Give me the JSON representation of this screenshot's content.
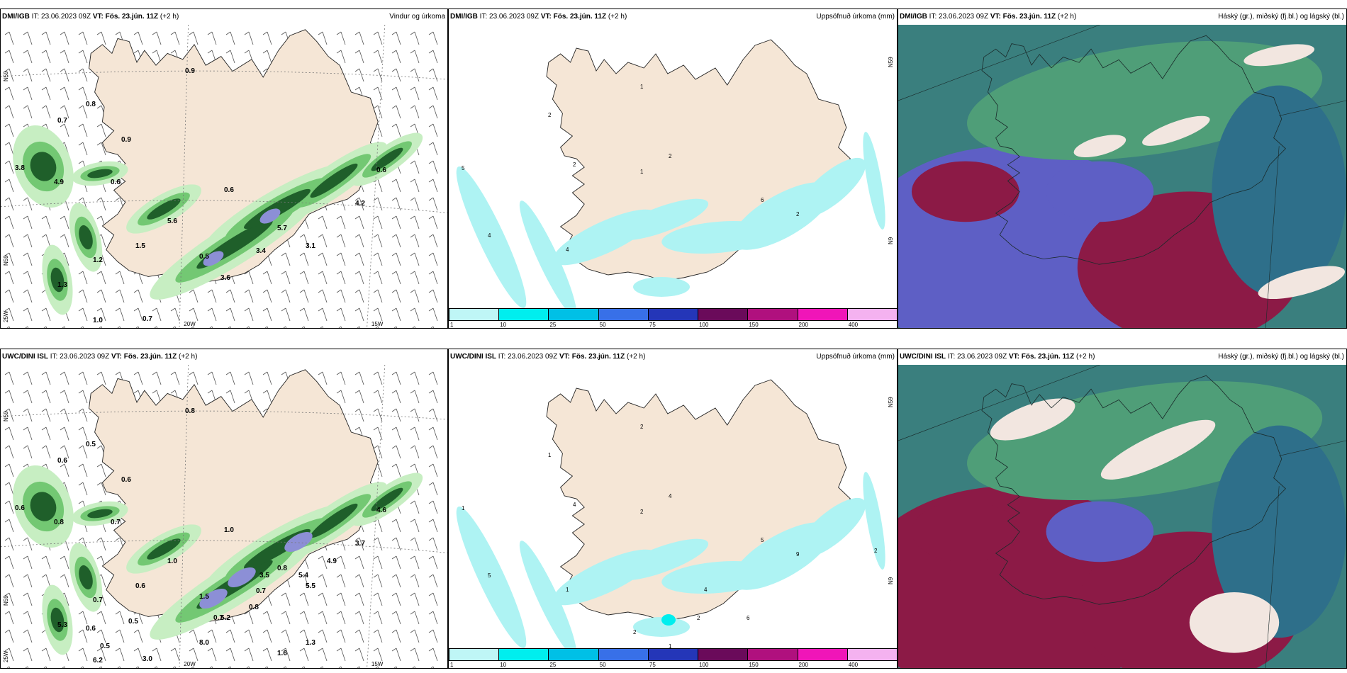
{
  "colors": {
    "land": "#f5e6d6",
    "sea": "#ffffff",
    "precip_light": "#c7eec2",
    "precip_mid": "#73c873",
    "precip_dark": "#1f5f2a",
    "precip_darkest": "#0b3b12",
    "cyan_precip": "#aef3f3",
    "cloud_dark": "#8c1a46",
    "cloud_blue": "#5e5fc5",
    "cloud_teal": "#3a7f7e",
    "cloud_green": "#4f9e78"
  },
  "panels": [
    {
      "model": "DMI/IGB",
      "it_label": "IT:",
      "it": "23.06.2023 09Z",
      "vt_label": "VT:",
      "vt": "Fös. 23.jún. 11Z",
      "lead": "(+2 h)",
      "title": "Vindur og úrkoma",
      "type": "wind",
      "axis": {
        "lat1": "N59",
        "lat2": "N59",
        "lon1": "20W",
        "lon2": "15W",
        "sw": "25W"
      },
      "values": [
        "0.9",
        "0.8",
        "0.7",
        "0.9",
        "3.8",
        "4.9",
        "0.6",
        "0.6",
        "5.6",
        "1.5",
        "1.2",
        "0.5",
        "5.7",
        "3.4",
        "3.1",
        "3.6",
        "4.2",
        "0.6",
        "1.3",
        "1.0",
        "0.7"
      ]
    },
    {
      "model": "DMI/IGB",
      "it_label": "IT:",
      "it": "23.06.2023 09Z",
      "vt_label": "VT:",
      "vt": "Fös. 23.jún. 11Z",
      "lead": "(+2 h)",
      "title": "Uppsöfnuð úrkoma (mm)",
      "type": "accum",
      "axis": {
        "lat1": "N59",
        "lat2": "N9"
      },
      "values": [
        "1",
        "2",
        "5",
        "2",
        "2",
        "4",
        "4",
        "1",
        "6",
        "2"
      ]
    },
    {
      "model": "DMI/IGB",
      "it_label": "IT:",
      "it": "23.06.2023 09Z",
      "vt_label": "VT:",
      "vt": "Fös. 23.jún. 11Z",
      "lead": "(+2 h)",
      "title": "Háský (gr.), miðský (fj.bl.) og lágský (bl.)",
      "type": "cloud"
    },
    {
      "model": "UWC/DINI ISL",
      "it_label": "IT:",
      "it": "23.06.2023 09Z",
      "vt_label": "VT:",
      "vt": "Fös. 23.jún. 11Z",
      "lead": "(+2 h)",
      "title": "",
      "type": "wind",
      "axis": {
        "lat1": "N59",
        "lat2": "N59",
        "lon1": "20W",
        "lon2": "15W",
        "sw": "25W"
      },
      "values": [
        "0.8",
        "0.5",
        "0.6",
        "0.6",
        "0.6",
        "0.8",
        "0.7",
        "1.0",
        "1.0",
        "0.6",
        "0.7",
        "1.5",
        "0.8",
        "0.7",
        "5.5",
        "5.2",
        "3.7",
        "4.6",
        "5.3",
        "6.2",
        "3.0",
        "4.9",
        "5.4",
        "3.5",
        "0.8",
        "0.7",
        "0.5",
        "0.6",
        "0.5",
        "8.0",
        "1.6",
        "1.3"
      ]
    },
    {
      "model": "UWC/DINI ISL",
      "it_label": "IT:",
      "it": "23.06.2023 09Z",
      "vt_label": "VT:",
      "vt": "Fös. 23.jún. 11Z",
      "lead": "(+2 h)",
      "title": "Uppsöfnuð úrkoma (mm)",
      "type": "accum",
      "axis": {
        "lat1": "N59",
        "lat2": "N9"
      },
      "values": [
        "2",
        "1",
        "1",
        "4",
        "4",
        "1",
        "5",
        "2",
        "5",
        "9",
        "4",
        "6",
        "2",
        "2",
        "1",
        "2"
      ]
    },
    {
      "model": "UWC/DINI ISL",
      "it_label": "IT:",
      "it": "23.06.2023 09Z",
      "vt_label": "VT:",
      "vt": "Fös. 23.jún. 11Z",
      "lead": "(+2 h)",
      "title": "Háský (gr.), miðský (fj.bl.) og lágský (bl.)",
      "type": "cloud"
    }
  ],
  "colorbar": {
    "ticks": [
      "1",
      "10",
      "25",
      "50",
      "75",
      "100",
      "150",
      "200",
      "400"
    ],
    "colors": [
      "#bff6f6",
      "#00eeee",
      "#00c0e6",
      "#3870e8",
      "#2436b8",
      "#6a0a5a",
      "#b0107e",
      "#f015b8",
      "#f4b2f0"
    ]
  }
}
